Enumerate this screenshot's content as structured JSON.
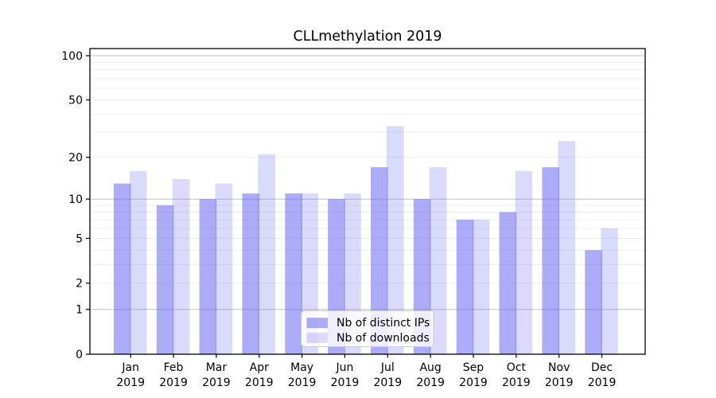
{
  "chart_data": {
    "type": "bar",
    "title": "CLLmethylation 2019",
    "xlabel": "",
    "ylabel": "",
    "yscale": "log1p",
    "ylim": [
      0,
      112
    ],
    "yticks": [
      0,
      1,
      2,
      5,
      10,
      20,
      50,
      100
    ],
    "major_gridlines": [
      1,
      10,
      100
    ],
    "minor_gridlines": [
      2,
      3,
      4,
      5,
      6,
      7,
      8,
      9,
      20,
      30,
      40,
      50,
      60,
      70,
      80,
      90
    ],
    "categories": [
      "Jan",
      "Feb",
      "Mar",
      "Apr",
      "May",
      "Jun",
      "Jul",
      "Aug",
      "Sep",
      "Oct",
      "Nov",
      "Dec"
    ],
    "year_label": "2019",
    "series": [
      {
        "name": "Nb of distinct IPs",
        "color": "rgba(102,102,240,0.55)",
        "values": [
          13,
          9,
          10,
          11,
          11,
          10,
          17,
          10,
          7,
          8,
          17,
          4
        ]
      },
      {
        "name": "Nb of downloads",
        "color": "rgba(102,102,240,0.24)",
        "values": [
          16,
          14,
          13,
          21,
          11,
          11,
          33,
          17,
          7,
          16,
          26,
          6
        ]
      }
    ],
    "legend": {
      "position": "lower center",
      "entries": [
        "Nb of distinct IPs",
        "Nb of downloads"
      ]
    },
    "colors": {
      "bar_base": "#6666f0",
      "major_grid": "#c9c9c9",
      "minor_grid": "#ededed",
      "spine": "#000000",
      "legend_border": "#cccccc",
      "legend_background": "rgba(255,255,255,0.8)"
    }
  }
}
